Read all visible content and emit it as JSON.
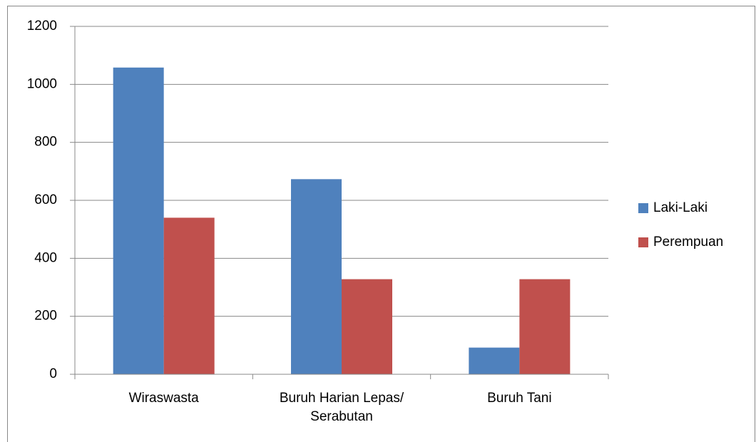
{
  "chart_data": {
    "type": "bar",
    "categories": [
      "Wiraswasta",
      "Buruh Harian Lepas/ Serabutan",
      "Buruh Tani"
    ],
    "series": [
      {
        "name": "Laki-Laki",
        "color": "#4f81bd",
        "values": [
          1058,
          673,
          92
        ]
      },
      {
        "name": "Perempuan",
        "color": "#c0504d",
        "values": [
          540,
          328,
          328
        ]
      }
    ],
    "ylim": [
      0,
      1200
    ],
    "yticks": [
      0,
      200,
      400,
      600,
      800,
      1000,
      1200
    ],
    "grid": true,
    "legend": "right"
  }
}
